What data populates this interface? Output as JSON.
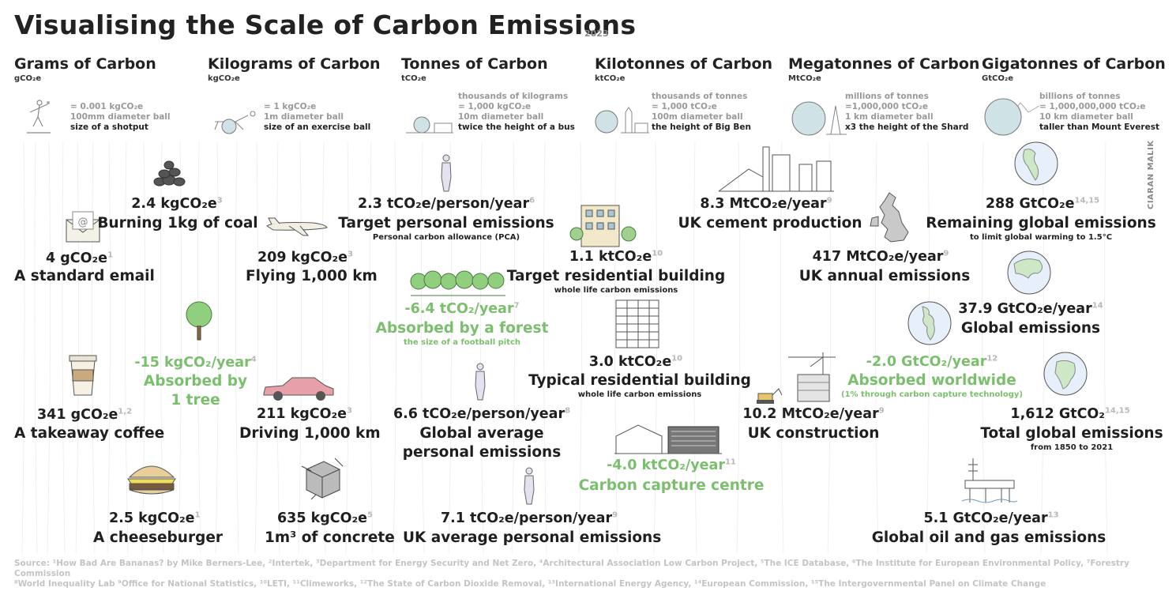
{
  "title": "Visualising the Scale of Carbon Emissions",
  "year": "2023",
  "credit": "CIARAN MALIK",
  "columns": [
    {
      "heading": "Grams of Carbon",
      "unit": "gCO₂e",
      "lines": [
        "= 0.001 kgCO₂e",
        "100mm diameter ball"
      ],
      "compare": "size of a shotput"
    },
    {
      "heading": "Kilograms of Carbon",
      "unit": "kgCO₂e",
      "lines": [
        "= 1 kgCO₂e",
        "1m diameter ball"
      ],
      "compare": "size of an exercise ball"
    },
    {
      "heading": "Tonnes of Carbon",
      "unit": "tCO₂e",
      "lines": [
        "thousands of kilograms",
        "= 1,000 kgCO₂e",
        "10m diameter ball"
      ],
      "compare": "twice the height of a bus"
    },
    {
      "heading": "Kilotonnes of Carbon",
      "unit": "ktCO₂e",
      "lines": [
        "thousands of tonnes",
        "= 1,000 tCO₂e",
        "100m diameter ball"
      ],
      "compare": "the height of Big Ben"
    },
    {
      "heading": "Megatonnes of Carbon",
      "unit": "MtCO₂e",
      "lines": [
        "millions of tonnes",
        "=1,000,000 tCO₂e",
        "1 km diameter ball"
      ],
      "compare": "x3 the height of the Shard"
    },
    {
      "heading": "Gigatonnes of Carbon",
      "unit": "GtCO₂e",
      "lines": [
        "billions of tonnes",
        "= 1,000,000,000 tCO₂e",
        "10 km diameter ball"
      ],
      "compare": "taller than Mount Everest"
    }
  ],
  "items": {
    "coal": {
      "value": "2.4 kgCO₂e",
      "ref": "3",
      "label": "Burning 1kg of coal"
    },
    "email": {
      "value": "4 gCO₂e",
      "ref": "1",
      "label": "A standard email"
    },
    "tree": {
      "value": "-15 kgCO₂/year",
      "ref": "4",
      "label1": "Absorbed by",
      "label2": "1 tree"
    },
    "coffee": {
      "value": "341 gCO₂e",
      "ref": "1,2",
      "label": "A takeaway coffee"
    },
    "cheeseburger": {
      "value": "2.5 kgCO₂e",
      "ref": "1",
      "label": "A cheeseburger"
    },
    "flying": {
      "value": "209 kgCO₂e",
      "ref": "3",
      "label": "Flying 1,000 km"
    },
    "driving": {
      "value": "211 kgCO₂e",
      "ref": "3",
      "label": "Driving 1,000 km"
    },
    "concrete": {
      "value": "635 kgCO₂e",
      "ref": "5",
      "label": "1m³ of concrete"
    },
    "target_personal": {
      "value": "2.3 tCO₂e/person/year",
      "ref": "6",
      "label": "Target personal emissions",
      "sub": "Personal carbon allowance (PCA)"
    },
    "forest": {
      "value": "-6.4 tCO₂/year",
      "ref": "7",
      "label": "Absorbed by a forest",
      "sub": "the size of a football pitch"
    },
    "global_personal": {
      "value": "6.6 tCO₂e/person/year",
      "ref": "8",
      "label1": "Global average",
      "label2": "personal emissions"
    },
    "uk_personal": {
      "value": "7.1 tCO₂e/person/year",
      "ref": "9",
      "label": "UK average personal emissions"
    },
    "target_building": {
      "value": "1.1 ktCO₂e",
      "ref": "10",
      "label": "Target residential building",
      "sub": "whole life carbon emissions"
    },
    "typical_building": {
      "value": "3.0 ktCO₂e",
      "ref": "10",
      "label": "Typical residential building",
      "sub": "whole life carbon emissions"
    },
    "capture_centre": {
      "value": "-4.0 ktCO₂/year",
      "ref": "11",
      "label": "Carbon capture centre"
    },
    "cement": {
      "value": "8.3 MtCO₂e/year",
      "ref": "9",
      "label": "UK cement production"
    },
    "uk_annual": {
      "value": "417 MtCO₂e/year",
      "ref": "9",
      "label": "UK annual emissions"
    },
    "uk_construction": {
      "value": "10.2 MtCO₂e/year",
      "ref": "9",
      "label": "UK construction"
    },
    "remaining_global": {
      "value": "288 GtCO₂e",
      "ref": "14,15",
      "label": "Remaining global emissions",
      "sub": "to limit global warming to 1.5°C"
    },
    "global_emissions": {
      "value": "37.9 GtCO₂e/year",
      "ref": "14",
      "label": "Global emissions"
    },
    "absorbed_worldwide": {
      "value": "-2.0 GtCO₂/year",
      "ref": "12",
      "label": "Absorbed worldwide",
      "sub": "(1% through carbon capture technology)"
    },
    "total_global": {
      "value": "1,612 GtCO₂",
      "ref": "14,15",
      "label": "Total global emissions",
      "sub": "from 1850 to 2021"
    },
    "oil_gas": {
      "value": "5.1 GtCO₂e/year",
      "ref": "13",
      "label": "Global oil and gas emissions"
    }
  },
  "source_line1": "Source: ¹How Bad Are Bananas? by Mike Berners-Lee, ²Intertek, ³Department for Energy Security and Net Zero, ⁴Architectural Association Low Carbon Project, ⁵The ICE Database, ⁶The Institute for European Environmental Policy, ⁷Forestry Commission",
  "source_line2": "⁸World Inequality Lab ⁹Office for National Statistics, ¹⁰LETI, ¹¹Climeworks, ¹²The State of Carbon Dioxide Removal, ¹³International Energy Agency, ¹⁴European Commission, ¹⁵The Intergovernmental Panel on Climate Change",
  "colors": {
    "negative": "#7bbf6e",
    "text": "#1f1f1f",
    "muted": "#999999",
    "sphere": "#cfe3e6"
  }
}
